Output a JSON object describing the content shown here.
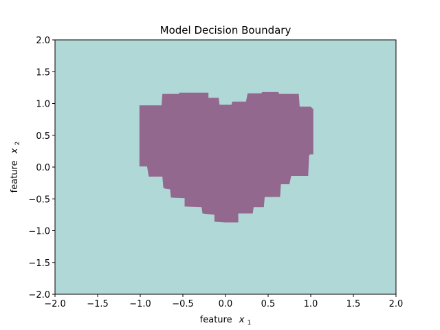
{
  "chart_data": {
    "type": "heatmap",
    "title": "Model Decision Boundary",
    "xlabel": {
      "text": "feature",
      "var": "x",
      "sub": "1"
    },
    "ylabel": {
      "text": "feature",
      "var": "x",
      "sub": "2"
    },
    "xlim": [
      -2.0,
      2.0
    ],
    "ylim": [
      -2.0,
      2.0
    ],
    "xticks": [
      -2.0,
      -1.5,
      -1.0,
      -0.5,
      0.0,
      0.5,
      1.0,
      1.5,
      2.0
    ],
    "yticks": [
      -2.0,
      -1.5,
      -1.0,
      -0.5,
      0.0,
      0.5,
      1.0,
      1.5,
      2.0
    ],
    "xtick_labels": [
      "−2.0",
      "−1.5",
      "−1.0",
      "−0.5",
      "0.0",
      "0.5",
      "1.0",
      "1.5",
      "2.0"
    ],
    "ytick_labels": [
      "−2.0",
      "−1.5",
      "−1.0",
      "−0.5",
      "0.0",
      "0.5",
      "1.0",
      "1.5",
      "2.0"
    ],
    "grid": false,
    "colors": {
      "background_class": "#b0d8d6",
      "inside_class": "#93688e"
    },
    "region": {
      "boundary_polygon": [
        [
          -1.01,
          0.97
        ],
        [
          -0.75,
          0.97
        ],
        [
          -0.74,
          1.15
        ],
        [
          -0.55,
          1.15
        ],
        [
          -0.54,
          1.17
        ],
        [
          -0.2,
          1.17
        ],
        [
          -0.2,
          1.09
        ],
        [
          -0.08,
          1.09
        ],
        [
          -0.07,
          0.98
        ],
        [
          0.07,
          0.98
        ],
        [
          0.08,
          1.03
        ],
        [
          0.24,
          1.03
        ],
        [
          0.26,
          1.16
        ],
        [
          0.42,
          1.16
        ],
        [
          0.43,
          1.18
        ],
        [
          0.62,
          1.18
        ],
        [
          0.63,
          1.15
        ],
        [
          0.86,
          1.15
        ],
        [
          0.87,
          0.95
        ],
        [
          1.0,
          0.95
        ],
        [
          1.02,
          0.92
        ],
        [
          1.03,
          0.92
        ],
        [
          1.03,
          0.2
        ],
        [
          0.99,
          0.2
        ],
        [
          0.98,
          0.17
        ],
        [
          0.97,
          -0.14
        ],
        [
          0.77,
          -0.14
        ],
        [
          0.75,
          -0.27
        ],
        [
          0.65,
          -0.27
        ],
        [
          0.64,
          -0.47
        ],
        [
          0.46,
          -0.47
        ],
        [
          0.45,
          -0.63
        ],
        [
          0.33,
          -0.63
        ],
        [
          0.32,
          -0.73
        ],
        [
          0.15,
          -0.73
        ],
        [
          0.15,
          -0.87
        ],
        [
          0.0,
          -0.87
        ],
        [
          -0.13,
          -0.86
        ],
        [
          -0.13,
          -0.75
        ],
        [
          -0.27,
          -0.73
        ],
        [
          -0.28,
          -0.63
        ],
        [
          -0.48,
          -0.62
        ],
        [
          -0.48,
          -0.49
        ],
        [
          -0.64,
          -0.48
        ],
        [
          -0.65,
          -0.35
        ],
        [
          -0.71,
          -0.34
        ],
        [
          -0.73,
          -0.32
        ],
        [
          -0.74,
          -0.15
        ],
        [
          -0.9,
          -0.15
        ],
        [
          -0.92,
          0.01
        ],
        [
          -1.01,
          0.01
        ]
      ]
    }
  }
}
